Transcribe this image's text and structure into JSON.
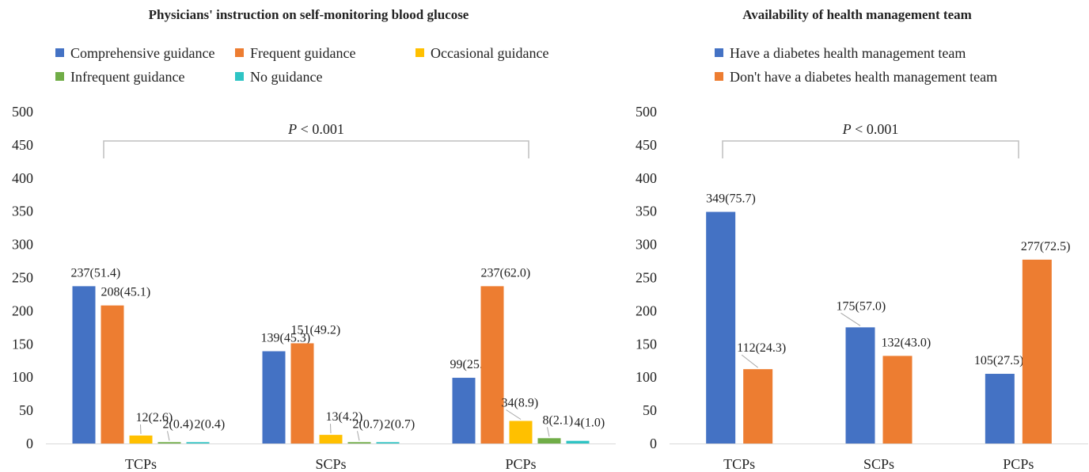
{
  "chart_data": [
    {
      "type": "bar",
      "title": "Physicians' instruction on self-monitoring blood glucose",
      "categories": [
        "TCPs",
        "SCPs",
        "PCPs"
      ],
      "series": [
        {
          "name": "Comprehensive guidance",
          "color": "#4472C4",
          "values": [
            237,
            139,
            99
          ],
          "labels": [
            "237(51.4)",
            "139(45.3)",
            "99(25.9)"
          ]
        },
        {
          "name": "Frequent guidance",
          "color": "#ED7D31",
          "values": [
            208,
            151,
            237
          ],
          "labels": [
            "208(45.1)",
            "151(49.2)",
            "237(62.0)"
          ]
        },
        {
          "name": "Occasional guidance",
          "color": "#FFC000",
          "values": [
            12,
            13,
            34
          ],
          "labels": [
            "12(2.6)",
            "13(4.2)",
            "34(8.9)"
          ]
        },
        {
          "name": "Infrequent guidance",
          "color": "#70AD47",
          "values": [
            2,
            2,
            8
          ],
          "labels": [
            "2(0.4)",
            "2(0.7)",
            "8(2.1)"
          ]
        },
        {
          "name": "No guidance",
          "color": "#2EC4C4",
          "values": [
            2,
            2,
            4
          ],
          "labels": [
            "2(0.4)",
            "2(0.7)",
            "4(1.0)"
          ]
        }
      ],
      "yticks": [
        "0",
        "50",
        "100",
        "150",
        "200",
        "250",
        "300",
        "350",
        "400",
        "450",
        "500"
      ],
      "ylim": [
        0,
        500
      ],
      "grid": false,
      "legend_position": "top",
      "annotation": {
        "italic": "P",
        "text": " < 0.001"
      }
    },
    {
      "type": "bar",
      "title": "Availability of health management team",
      "categories": [
        "TCPs",
        "SCPs",
        "PCPs"
      ],
      "series": [
        {
          "name": "Have a diabetes health management team",
          "color": "#4472C4",
          "values": [
            349,
            175,
            105
          ],
          "labels": [
            "349(75.7)",
            "175(57.0)",
            "105(27.5)"
          ]
        },
        {
          "name": "Don't have a diabetes health management team",
          "color": "#ED7D31",
          "values": [
            112,
            132,
            277
          ],
          "labels": [
            "112(24.3)",
            "132(43.0)",
            "277(72.5)"
          ]
        }
      ],
      "yticks": [
        "0",
        "50",
        "100",
        "150",
        "200",
        "250",
        "300",
        "350",
        "400",
        "450",
        "500"
      ],
      "ylim": [
        0,
        500
      ],
      "grid": false,
      "legend_position": "top",
      "annotation": {
        "italic": "P",
        "text": " < 0.001"
      }
    }
  ]
}
